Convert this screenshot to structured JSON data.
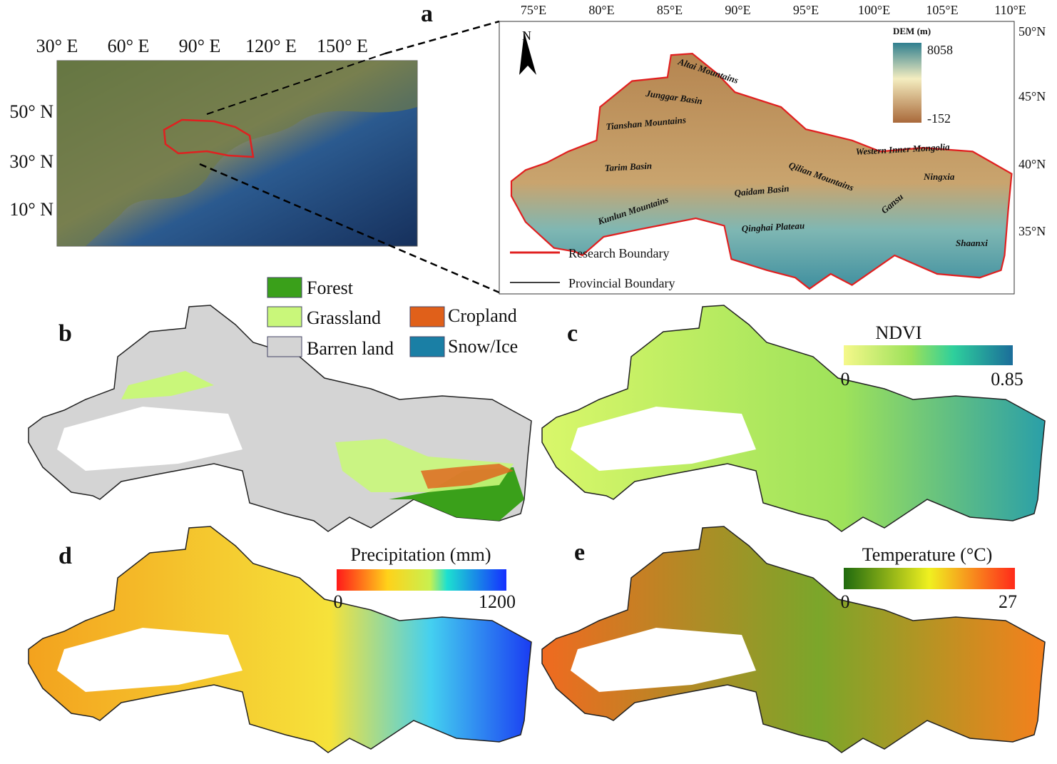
{
  "overview": {
    "lon_labels": [
      "30° E",
      "60° E",
      "90° E",
      "120° E",
      "150° E"
    ],
    "lat_labels": [
      "50° N",
      "30° N",
      "10° N"
    ]
  },
  "panel_a": {
    "label": "a",
    "lon_labels": [
      "75°E",
      "80°E",
      "85°E",
      "90°E",
      "95°E",
      "100°E",
      "105°E",
      "110°E"
    ],
    "lat_labels": [
      "50°N",
      "45°N",
      "40°N",
      "35°N"
    ],
    "north": "N",
    "dem_title": "DEM (m)",
    "dem_max": 8058,
    "dem_min": -152,
    "places": [
      "Altai Mountains",
      "Junggar Basin",
      "Tianshan Mountains",
      "Tarim Basin",
      "Kunlun Mountains",
      "Qaidam Basin",
      "Qilian Mountains",
      "Qinghai Plateau",
      "Western Inner Mongolia",
      "Gansu",
      "Ningxia",
      "Shaanxi"
    ],
    "legend": [
      "Research Boundary",
      "Provincial Boundary"
    ]
  },
  "panel_b": {
    "label": "b",
    "legend": [
      "Forest",
      "Grassland",
      "Cropland",
      "Barren land",
      "Snow/Ice"
    ]
  },
  "panel_c": {
    "label": "c",
    "title": "NDVI",
    "min": 0,
    "max": 0.85
  },
  "panel_d": {
    "label": "d",
    "title": "Precipitation (mm)",
    "min": 0,
    "max": 1200
  },
  "panel_e": {
    "label": "e",
    "title": "Temperature (°C)",
    "min": 0,
    "max": 27
  }
}
